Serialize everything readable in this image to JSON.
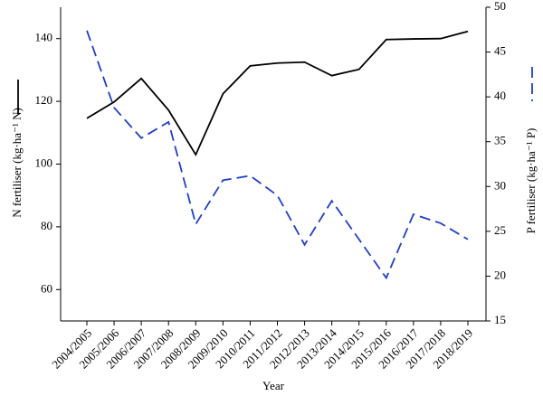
{
  "chart_data": {
    "type": "line",
    "x_label": "Year",
    "y_label": "N fertiliser (kg·ha⁻¹ N)",
    "y2_label": "P fertiliser (kg·ha⁻¹ P)",
    "categories": [
      "2004/2005",
      "2005/2006",
      "2006/2007",
      "2007/2008",
      "2008/2009",
      "2009/2010",
      "2010/2011",
      "2011/2012",
      "2012/2013",
      "2013/2014",
      "2014/2015",
      "2015/2016",
      "2016/2017",
      "2017/2018",
      "2018/2019"
    ],
    "series": [
      {
        "color": "#000000",
        "dash": "solid",
        "values": [
          114.6,
          119.8,
          127.3,
          117.2,
          103,
          122.4,
          131.3,
          132.2,
          132.5,
          128.2,
          130.2,
          139.7,
          139.9,
          140,
          142.3
        ]
      },
      {
        "color": "#1f3fc8",
        "dash": "dashed",
        "axis": "y2",
        "values": [
          47.4,
          38.8,
          35.4,
          37.2,
          25.8,
          30.7,
          31.2,
          29,
          23.5,
          28.4,
          24.1,
          19.8,
          26.9,
          25.9,
          24.1
        ]
      }
    ],
    "ylim": [
      50,
      150
    ],
    "yticks": [
      60,
      80,
      100,
      120,
      140
    ],
    "y2lim": [
      15,
      50
    ],
    "y2ticks": [
      15,
      20,
      25,
      30,
      35,
      40,
      45,
      50
    ]
  }
}
